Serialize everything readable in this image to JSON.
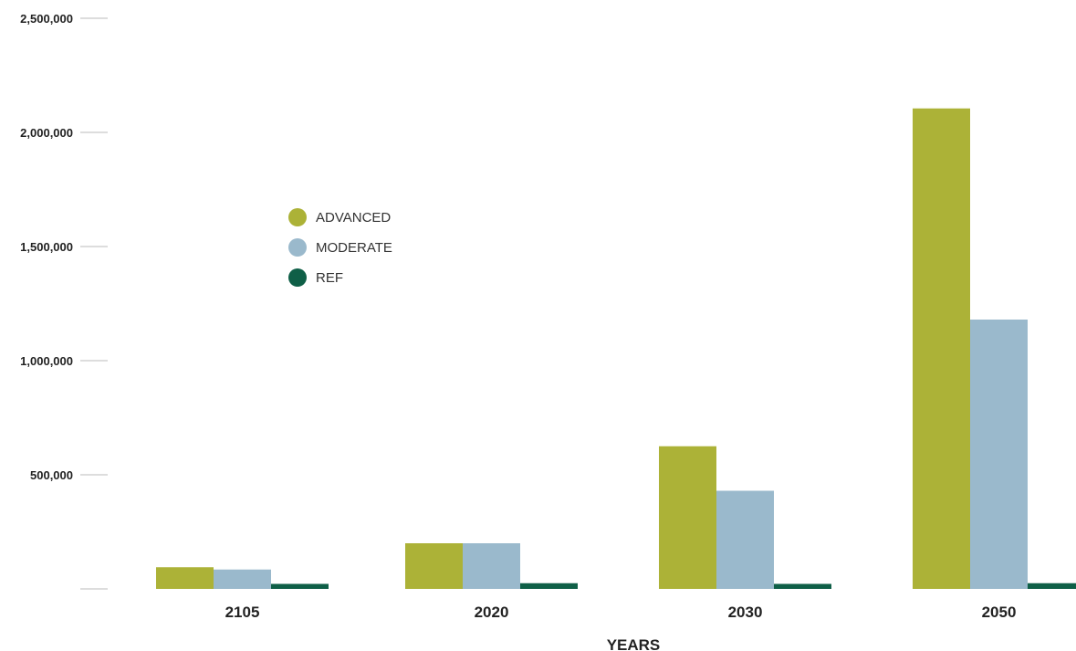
{
  "chart_data": {
    "type": "bar",
    "title": "",
    "xlabel": "YEARS",
    "ylabel": "",
    "categories": [
      "2105",
      "2020",
      "2030",
      "2050"
    ],
    "ylim": [
      0,
      2500000
    ],
    "yticks": [
      500000,
      1000000,
      1500000,
      2000000,
      2500000
    ],
    "ytick_labels": [
      "500,000",
      "1,000,000",
      "1,500,000",
      "2,000,000",
      "2,500,000"
    ],
    "grid": false,
    "legend_position": "upper-left (inside plot)",
    "series": [
      {
        "name": "ADVANCED",
        "color": "#acb237",
        "values": [
          95000,
          200000,
          625000,
          2105000
        ]
      },
      {
        "name": "MODERATE",
        "color": "#9ab9cc",
        "values": [
          85000,
          200000,
          430000,
          1180000
        ]
      },
      {
        "name": "REF",
        "color": "#0f5f47",
        "values": [
          22000,
          25000,
          22000,
          25000
        ]
      }
    ]
  }
}
